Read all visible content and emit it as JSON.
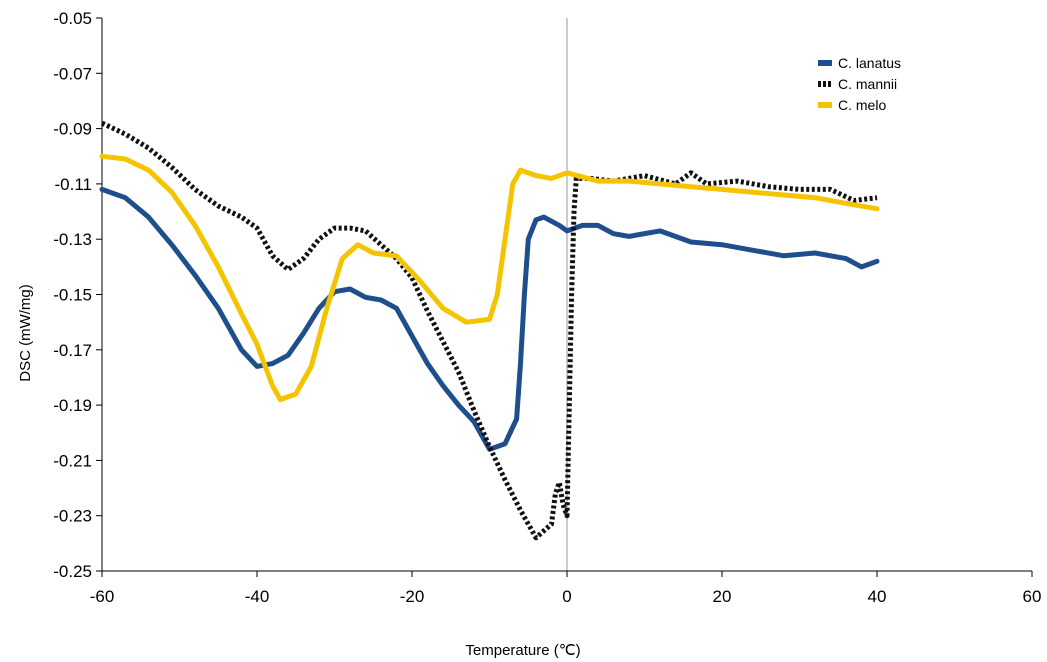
{
  "chart_data": {
    "type": "line",
    "title": "",
    "xlabel": "Temperature (℃)",
    "ylabel": "DSC (mW/mg)",
    "xlim": [
      -60,
      60
    ],
    "ylim": [
      -0.25,
      -0.05
    ],
    "x_ticks": [
      "-60",
      "-40",
      "-20",
      "0",
      "20",
      "40",
      "60"
    ],
    "y_ticks": [
      "-0.05",
      "-0.07",
      "-0.09",
      "-0.11",
      "-0.13",
      "-0.15",
      "-0.17",
      "-0.19",
      "-0.21",
      "-0.23",
      "-0.25"
    ],
    "grid": false,
    "zero_line": true,
    "legend_position": "top-right",
    "series": [
      {
        "name": "C. lanatus",
        "color": "#1f4e8c",
        "style": "solid",
        "points": [
          [
            -60,
            -0.112
          ],
          [
            -57,
            -0.115
          ],
          [
            -54,
            -0.122
          ],
          [
            -51,
            -0.132
          ],
          [
            -48,
            -0.143
          ],
          [
            -45,
            -0.155
          ],
          [
            -42,
            -0.17
          ],
          [
            -40,
            -0.176
          ],
          [
            -38,
            -0.175
          ],
          [
            -36,
            -0.172
          ],
          [
            -34,
            -0.164
          ],
          [
            -32,
            -0.155
          ],
          [
            -30,
            -0.149
          ],
          [
            -28,
            -0.148
          ],
          [
            -26,
            -0.151
          ],
          [
            -24,
            -0.152
          ],
          [
            -22,
            -0.155
          ],
          [
            -20,
            -0.165
          ],
          [
            -18,
            -0.175
          ],
          [
            -16,
            -0.183
          ],
          [
            -14,
            -0.19
          ],
          [
            -12,
            -0.196
          ],
          [
            -10,
            -0.206
          ],
          [
            -8,
            -0.204
          ],
          [
            -6.5,
            -0.195
          ],
          [
            -6,
            -0.175
          ],
          [
            -5.5,
            -0.15
          ],
          [
            -5,
            -0.13
          ],
          [
            -4,
            -0.123
          ],
          [
            -3,
            -0.122
          ],
          [
            -1,
            -0.125
          ],
          [
            0,
            -0.127
          ],
          [
            2,
            -0.125
          ],
          [
            4,
            -0.125
          ],
          [
            6,
            -0.128
          ],
          [
            8,
            -0.129
          ],
          [
            12,
            -0.127
          ],
          [
            16,
            -0.131
          ],
          [
            20,
            -0.132
          ],
          [
            24,
            -0.134
          ],
          [
            28,
            -0.136
          ],
          [
            32,
            -0.135
          ],
          [
            36,
            -0.137
          ],
          [
            38,
            -0.14
          ],
          [
            40,
            -0.138
          ]
        ]
      },
      {
        "name": "C. mannii",
        "color": "#111111",
        "style": "dotted",
        "points": [
          [
            -60,
            -0.088
          ],
          [
            -57,
            -0.092
          ],
          [
            -54,
            -0.097
          ],
          [
            -51,
            -0.104
          ],
          [
            -48,
            -0.112
          ],
          [
            -45,
            -0.118
          ],
          [
            -42,
            -0.122
          ],
          [
            -40,
            -0.126
          ],
          [
            -38,
            -0.136
          ],
          [
            -36,
            -0.141
          ],
          [
            -34,
            -0.137
          ],
          [
            -32,
            -0.13
          ],
          [
            -30,
            -0.126
          ],
          [
            -28,
            -0.126
          ],
          [
            -26,
            -0.127
          ],
          [
            -24,
            -0.132
          ],
          [
            -22,
            -0.137
          ],
          [
            -20,
            -0.144
          ],
          [
            -18,
            -0.156
          ],
          [
            -16,
            -0.167
          ],
          [
            -14,
            -0.178
          ],
          [
            -12,
            -0.192
          ],
          [
            -10,
            -0.205
          ],
          [
            -8,
            -0.217
          ],
          [
            -6,
            -0.228
          ],
          [
            -4,
            -0.238
          ],
          [
            -2,
            -0.233
          ],
          [
            -1.5,
            -0.222
          ],
          [
            -1,
            -0.218
          ],
          [
            -0.5,
            -0.226
          ],
          [
            0,
            -0.23
          ],
          [
            0.3,
            -0.19
          ],
          [
            0.6,
            -0.15
          ],
          [
            0.9,
            -0.12
          ],
          [
            1.2,
            -0.108
          ],
          [
            3,
            -0.108
          ],
          [
            6,
            -0.109
          ],
          [
            10,
            -0.107
          ],
          [
            14,
            -0.11
          ],
          [
            16,
            -0.106
          ],
          [
            18,
            -0.11
          ],
          [
            22,
            -0.109
          ],
          [
            26,
            -0.111
          ],
          [
            30,
            -0.112
          ],
          [
            34,
            -0.112
          ],
          [
            37,
            -0.116
          ],
          [
            40,
            -0.115
          ]
        ]
      },
      {
        "name": "C. melo",
        "color": "#f5c400",
        "style": "solid",
        "points": [
          [
            -60,
            -0.1
          ],
          [
            -57,
            -0.101
          ],
          [
            -54,
            -0.105
          ],
          [
            -51,
            -0.113
          ],
          [
            -48,
            -0.125
          ],
          [
            -45,
            -0.14
          ],
          [
            -42,
            -0.157
          ],
          [
            -40,
            -0.168
          ],
          [
            -38,
            -0.183
          ],
          [
            -37,
            -0.188
          ],
          [
            -35,
            -0.186
          ],
          [
            -33,
            -0.176
          ],
          [
            -31,
            -0.155
          ],
          [
            -29,
            -0.137
          ],
          [
            -27,
            -0.132
          ],
          [
            -25,
            -0.135
          ],
          [
            -22,
            -0.136
          ],
          [
            -19,
            -0.145
          ],
          [
            -16,
            -0.155
          ],
          [
            -13,
            -0.16
          ],
          [
            -10,
            -0.159
          ],
          [
            -9,
            -0.15
          ],
          [
            -8,
            -0.13
          ],
          [
            -7,
            -0.11
          ],
          [
            -6,
            -0.105
          ],
          [
            -4,
            -0.107
          ],
          [
            -2,
            -0.108
          ],
          [
            0,
            -0.106
          ],
          [
            4,
            -0.109
          ],
          [
            8,
            -0.109
          ],
          [
            12,
            -0.11
          ],
          [
            16,
            -0.111
          ],
          [
            20,
            -0.112
          ],
          [
            24,
            -0.113
          ],
          [
            28,
            -0.114
          ],
          [
            32,
            -0.115
          ],
          [
            36,
            -0.117
          ],
          [
            40,
            -0.119
          ]
        ]
      }
    ]
  }
}
